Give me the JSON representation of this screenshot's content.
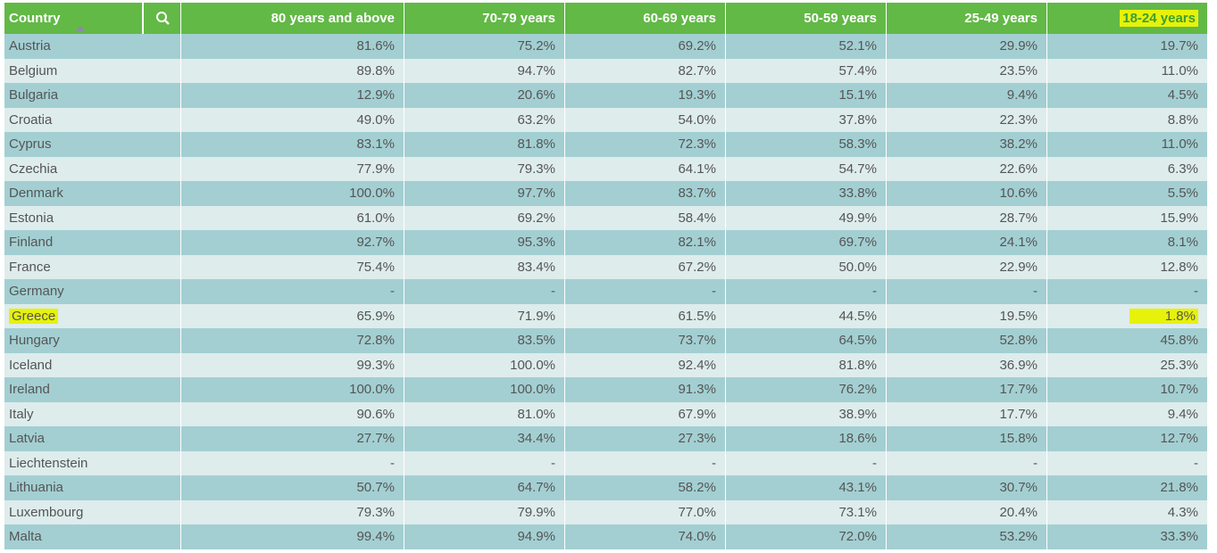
{
  "table": {
    "columns": [
      "Country",
      "80 years and above",
      "70-79 years",
      "60-69 years",
      "50-59 years",
      "25-49 years",
      "18-24 years"
    ],
    "rows": [
      [
        "Austria",
        "81.6%",
        "75.2%",
        "69.2%",
        "52.1%",
        "29.9%",
        "19.7%"
      ],
      [
        "Belgium",
        "89.8%",
        "94.7%",
        "82.7%",
        "57.4%",
        "23.5%",
        "11.0%"
      ],
      [
        "Bulgaria",
        "12.9%",
        "20.6%",
        "19.3%",
        "15.1%",
        "9.4%",
        "4.5%"
      ],
      [
        "Croatia",
        "49.0%",
        "63.2%",
        "54.0%",
        "37.8%",
        "22.3%",
        "8.8%"
      ],
      [
        "Cyprus",
        "83.1%",
        "81.8%",
        "72.3%",
        "58.3%",
        "38.2%",
        "11.0%"
      ],
      [
        "Czechia",
        "77.9%",
        "79.3%",
        "64.1%",
        "54.7%",
        "22.6%",
        "6.3%"
      ],
      [
        "Denmark",
        "100.0%",
        "97.7%",
        "83.7%",
        "33.8%",
        "10.6%",
        "5.5%"
      ],
      [
        "Estonia",
        "61.0%",
        "69.2%",
        "58.4%",
        "49.9%",
        "28.7%",
        "15.9%"
      ],
      [
        "Finland",
        "92.7%",
        "95.3%",
        "82.1%",
        "69.7%",
        "24.1%",
        "8.1%"
      ],
      [
        "France",
        "75.4%",
        "83.4%",
        "67.2%",
        "50.0%",
        "22.9%",
        "12.8%"
      ],
      [
        "Germany",
        "-",
        "-",
        "-",
        "-",
        "-",
        "-"
      ],
      [
        "Greece",
        "65.9%",
        "71.9%",
        "61.5%",
        "44.5%",
        "19.5%",
        "1.8%"
      ],
      [
        "Hungary",
        "72.8%",
        "83.5%",
        "73.7%",
        "64.5%",
        "52.8%",
        "45.8%"
      ],
      [
        "Iceland",
        "99.3%",
        "100.0%",
        "92.4%",
        "81.8%",
        "36.9%",
        "25.3%"
      ],
      [
        "Ireland",
        "100.0%",
        "100.0%",
        "91.3%",
        "76.2%",
        "17.7%",
        "10.7%"
      ],
      [
        "Italy",
        "90.6%",
        "81.0%",
        "67.9%",
        "38.9%",
        "17.7%",
        "9.4%"
      ],
      [
        "Latvia",
        "27.7%",
        "34.4%",
        "27.3%",
        "18.6%",
        "15.8%",
        "12.7%"
      ],
      [
        "Liechtenstein",
        "-",
        "-",
        "-",
        "-",
        "-",
        "-"
      ],
      [
        "Lithuania",
        "50.7%",
        "64.7%",
        "58.2%",
        "43.1%",
        "30.7%",
        "21.8%"
      ],
      [
        "Luxembourg",
        "79.3%",
        "79.9%",
        "77.0%",
        "73.1%",
        "20.4%",
        "4.3%"
      ],
      [
        "Malta",
        "99.4%",
        "94.9%",
        "74.0%",
        "72.0%",
        "53.2%",
        "33.3%"
      ]
    ]
  }
}
